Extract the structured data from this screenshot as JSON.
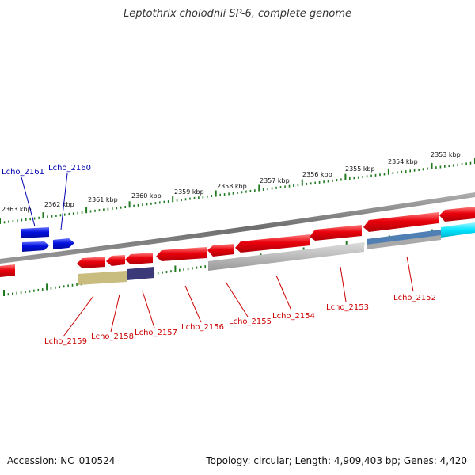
{
  "title": "Leptothrix cholodnii SP-6, complete genome",
  "footer": {
    "accession": "Accession: NC_010524",
    "summary": "Topology: circular; Length: 4,909,403 bp; Genes: 4,420"
  },
  "scale": {
    "ticks": [
      "2363 kbp",
      "2362 kbp",
      "2361 kbp",
      "2360 kbp",
      "2359 kbp",
      "2358 kbp",
      "2357 kbp",
      "2356 kbp",
      "2355 kbp",
      "2354 kbp",
      "2353 kbp"
    ]
  },
  "colors": {
    "backbone": "#7a7a7a",
    "gene_red": "#e8000b",
    "gene_blue": "#0011dd",
    "gene_cyan": "#00e5ff",
    "tick_green": "#1f7a1f",
    "label_blue": "#0000b0",
    "label_red": "#cc0000",
    "feature_grey": "#b9b9b9",
    "feature_khaki": "#c8bd7e",
    "feature_navy": "#3b3978",
    "feature_steel": "#4f7fb3"
  },
  "genes": {
    "top_strand": [
      "Lcho_2161",
      "Lcho_2160"
    ],
    "bottom_strand": [
      "Lcho_2159",
      "Lcho_2158",
      "Lcho_2157",
      "Lcho_2156",
      "Lcho_2155",
      "Lcho_2154",
      "Lcho_2153",
      "Lcho_2152"
    ]
  }
}
